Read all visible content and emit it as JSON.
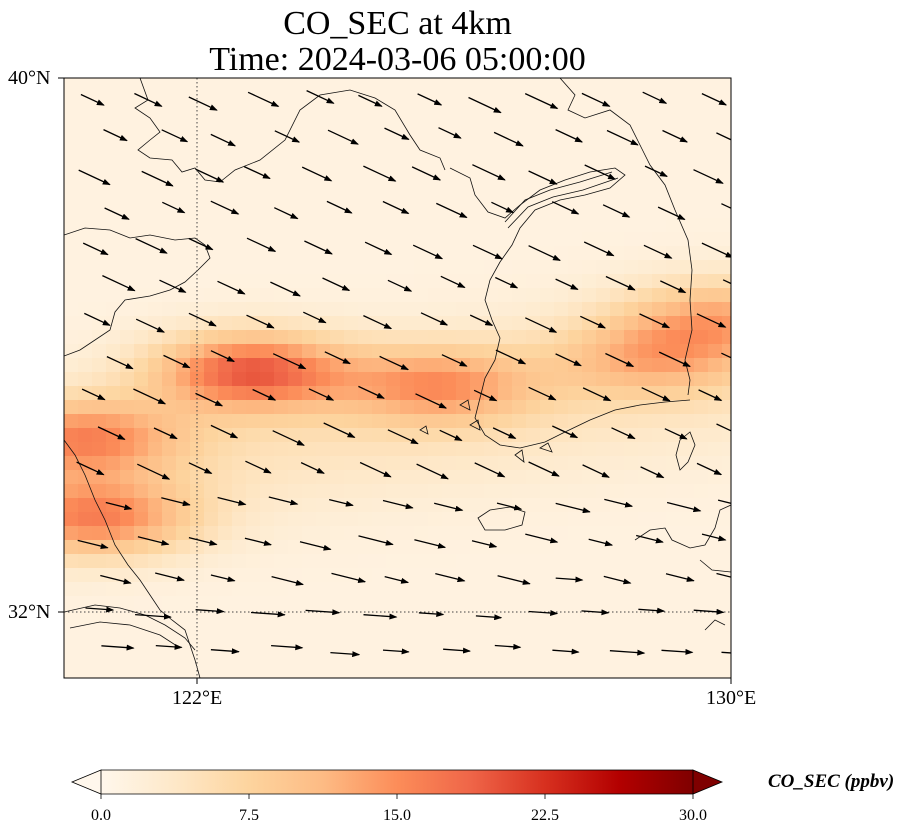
{
  "title": {
    "line1": "CO_SEC at 4km",
    "line2": "Time: 2024-03-06 05:00:00"
  },
  "axes": {
    "x_ticks": [
      "122°E",
      "130°E"
    ],
    "y_ticks": [
      "40°N",
      "32°N"
    ],
    "lon_range": [
      120,
      130
    ],
    "lat_range": [
      31,
      40
    ],
    "gridlines": "dotted at 122°E and 32°N"
  },
  "colorbar": {
    "label": "CO_SEC (ppbv)",
    "ticks": [
      "0.0",
      "7.5",
      "15.0",
      "22.5",
      "30.0"
    ],
    "range": [
      0,
      30
    ],
    "colormap": "OrRd",
    "extend": "both",
    "colors": [
      "#fff7ec",
      "#fee8c8",
      "#fdd49e",
      "#fdbb84",
      "#fc8d59",
      "#ef6548",
      "#d7301f",
      "#b30000",
      "#7f0000"
    ]
  },
  "field": {
    "name": "CO_SEC",
    "units": "ppbv",
    "plumes": [
      {
        "lon": 120.5,
        "lat": 33.4,
        "value": 13
      },
      {
        "lon": 120.3,
        "lat": 34.6,
        "value": 12
      },
      {
        "lon": 122.8,
        "lat": 35.6,
        "value": 17
      },
      {
        "lon": 125.6,
        "lat": 35.4,
        "value": 11
      },
      {
        "lon": 128.8,
        "lat": 35.8,
        "value": 8
      },
      {
        "lon": 129.8,
        "lat": 36.4,
        "value": 9
      }
    ]
  }
}
